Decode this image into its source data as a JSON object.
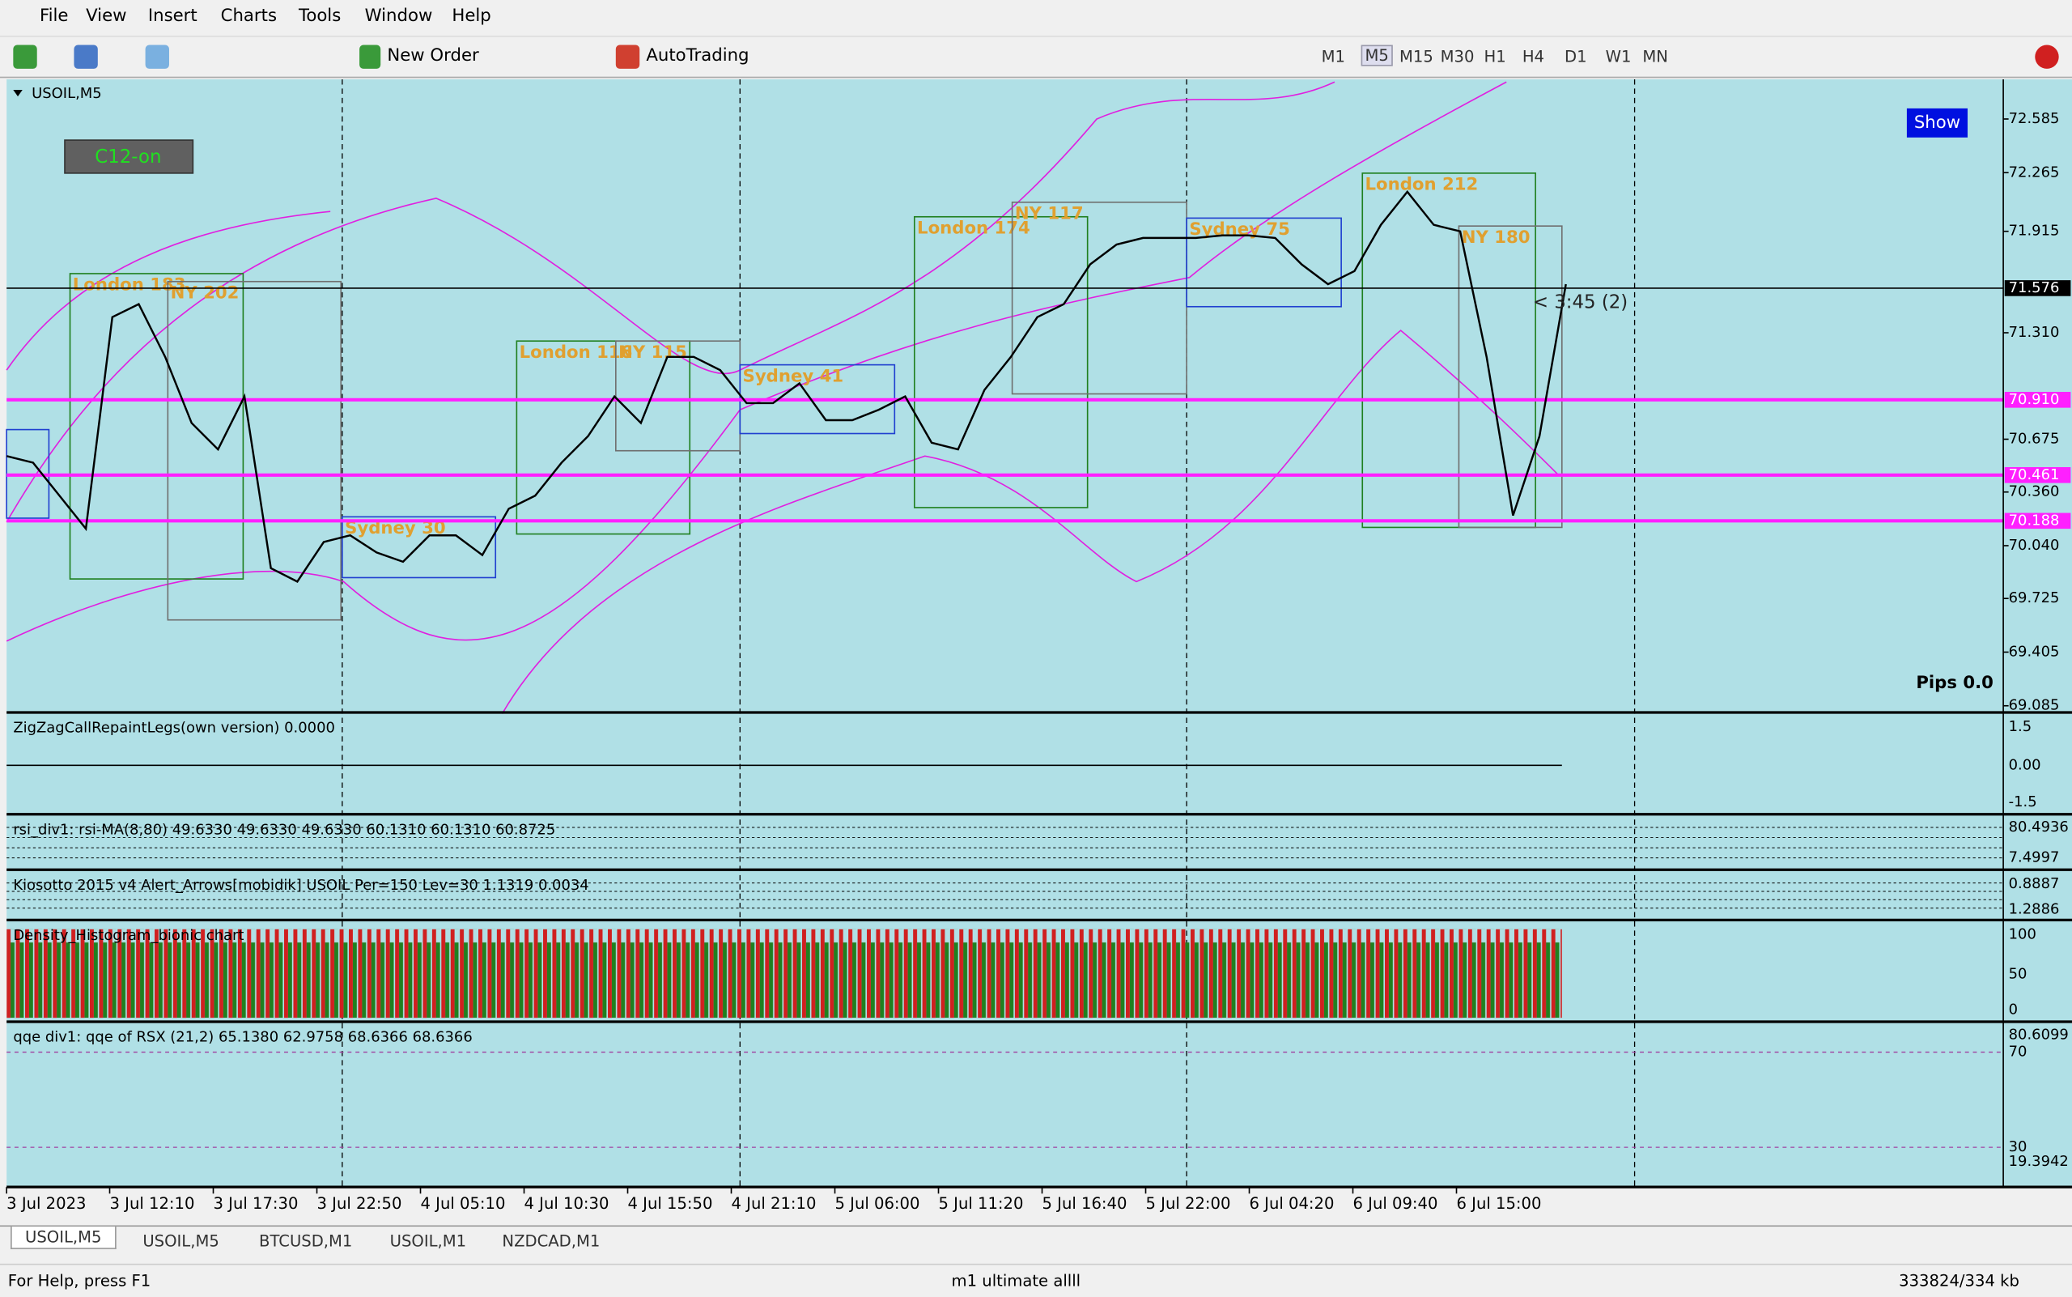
{
  "menu": [
    "File",
    "View",
    "Insert",
    "Charts",
    "Tools",
    "Window",
    "Help"
  ],
  "toolbar": {
    "new_order": "New Order",
    "autotrading": "AutoTrading",
    "timeframes": [
      "M1",
      "M5",
      "M15",
      "M30",
      "H1",
      "H4",
      "D1",
      "W1",
      "MN"
    ]
  },
  "chart": {
    "title": "USOIL,M5",
    "c12": "C12-on",
    "show": "Show",
    "pips": "Pips 0.0",
    "timer": "< 3:45 (2)",
    "ylim": [
      69.053,
      72.806
    ],
    "yticks": [
      72.585,
      72.265,
      71.915,
      {
        "value": 71.31,
        "label": "71.310"
      },
      70.675,
      {
        "value": 70.36,
        "label": "70.360"
      },
      {
        "value": 70.04,
        "label": "70.040"
      },
      69.725,
      69.405,
      69.085
    ],
    "levels": [
      71.576,
      {
        "value": 70.91,
        "label": "70.910"
      },
      70.461,
      70.188
    ],
    "xticks": [
      "3 Jul 2023",
      "3 Jul 12:10",
      "3 Jul 17:30",
      "3 Jul 22:50",
      "4 Jul 05:10",
      "4 Jul 10:30",
      "4 Jul 15:50",
      "4 Jul 21:10",
      "5 Jul 06:00",
      "5 Jul 11:20",
      "5 Jul 16:40",
      "5 Jul 22:00",
      "6 Jul 04:20",
      "6 Jul 09:40",
      "6 Jul 15:00"
    ],
    "sessions": [
      "London 183",
      "NY 202",
      "Sydney 30",
      "London 116",
      "NY 115",
      "Sydney 41",
      "London 174",
      "NY 117",
      "Sydney 75",
      "London 212",
      "NY 180"
    ],
    "price": [
      70.575,
      70.535,
      70.338,
      70.141,
      71.403,
      71.481,
      71.166,
      70.772,
      70.614,
      70.93,
      69.905,
      69.826,
      70.062,
      70.102,
      69.999,
      69.944,
      70.102,
      70.102,
      69.984,
      70.26,
      70.338,
      70.535,
      70.693,
      70.93,
      70.772,
      71.166,
      71.166,
      71.087,
      70.89,
      70.89,
      71.008,
      70.788,
      70.788,
      70.851,
      70.93,
      70.654,
      70.614,
      70.969,
      71.166,
      71.403,
      71.481,
      71.718,
      71.836,
      71.876,
      71.876,
      71.876,
      71.891,
      71.891,
      71.876,
      71.718,
      71.6,
      71.678,
      71.954,
      72.151,
      71.954,
      71.915,
      71.166,
      70.22,
      70.693,
      71.6
    ]
  },
  "indicators": [
    {
      "label": "ZigZagCallRepaintLegs(own version) 0.0000",
      "axis": [
        "1.5",
        "0.00",
        "-1.5"
      ]
    },
    {
      "label": "rsi_div1: rsi-MA(8,80) 49.6330 49.6330 49.6330 60.1310 60.1310 60.8725",
      "axis": [
        "80.4936",
        "7.4997"
      ]
    },
    {
      "label": "Kiosotto 2015 v4 Alert_Arrows[mobidik] USOIL Per=150 Lev=30 1.1319 0.0034",
      "axis": [
        "0.8887",
        "1.2886"
      ]
    },
    {
      "label": "Density_Histogram_bionic chart",
      "axis": [
        "100",
        "50",
        "0"
      ]
    },
    {
      "label": "qqe div1: qqe of RSX (21,2) 65.1380 62.9758 68.6366 68.6366",
      "axis": [
        "80.6099",
        "70",
        "30",
        "19.3942"
      ]
    }
  ],
  "tabs": [
    "USOIL,M5",
    "USOIL,M5",
    "BTCUSD,M1",
    "USOIL,M1",
    "NZDCAD,M1"
  ],
  "status": [
    "For Help, press F1",
    "m1 ultimate allll",
    "333824/334 kb"
  ]
}
